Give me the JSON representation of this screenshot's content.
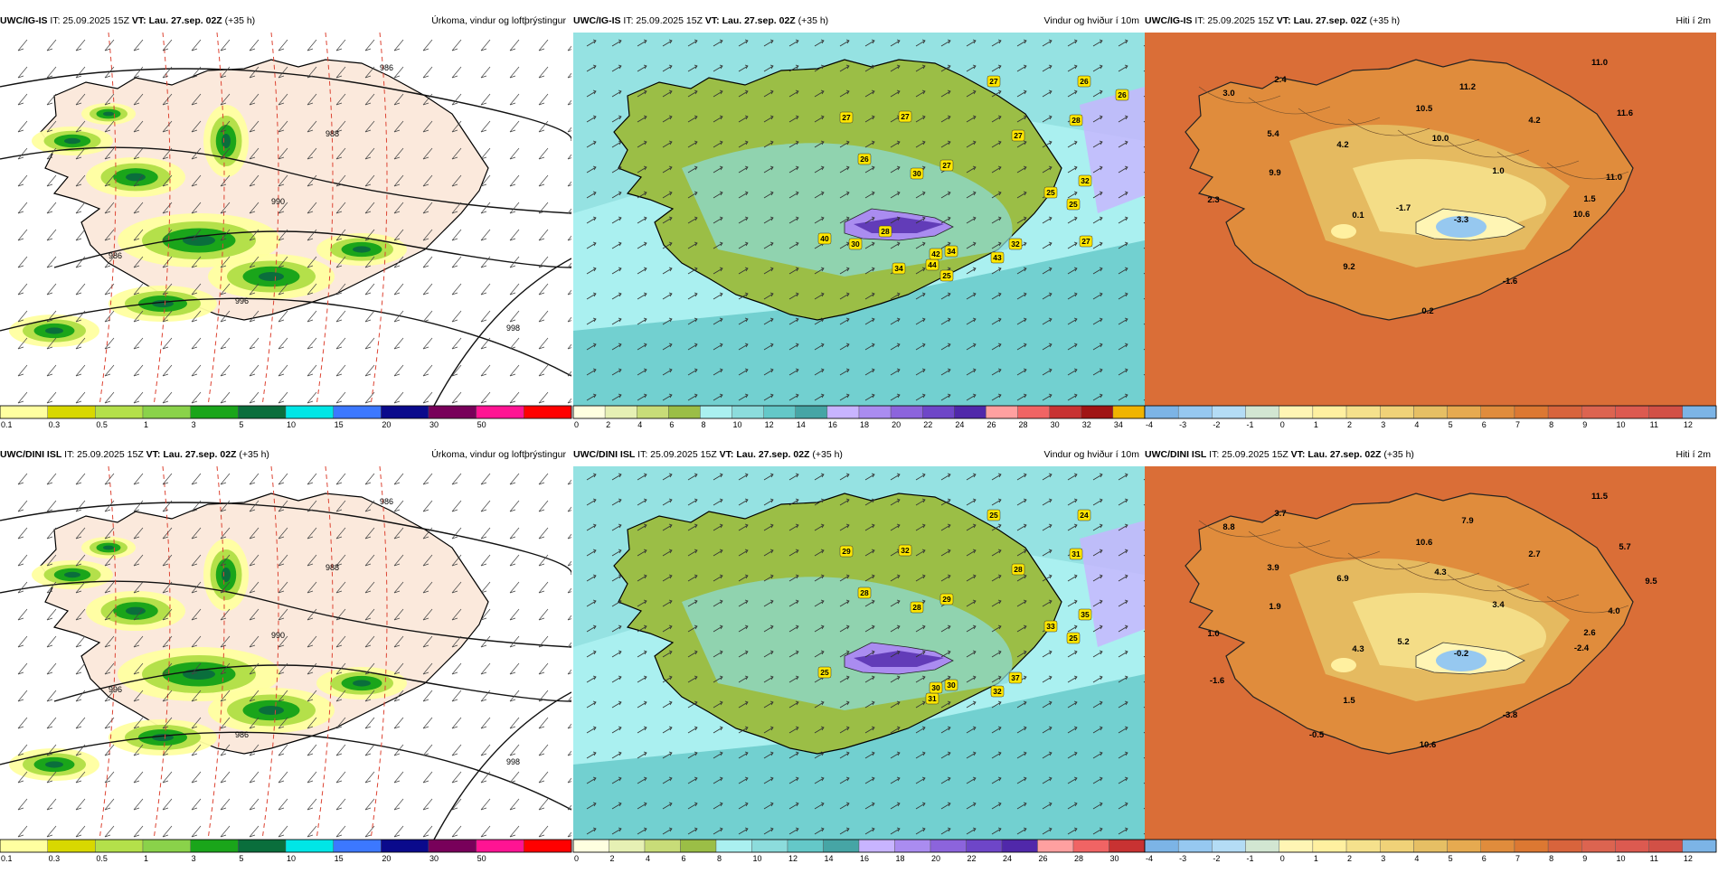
{
  "panels": [
    {
      "id": "p1",
      "model": "UWC/IG-IS",
      "field": "Úrkoma, vindur og loftþrýstingur",
      "kind": "precip",
      "ticks": [
        "0.1",
        "0.3",
        "0.5",
        "1",
        "3",
        "5",
        "10",
        "15",
        "20",
        "30",
        "50"
      ],
      "isobars": [
        "986",
        "988",
        "990",
        "996",
        "998",
        "986"
      ]
    },
    {
      "id": "p2",
      "model": "UWC/IG-IS",
      "field": "Vindur og hviður í 10m",
      "kind": "wind",
      "ticks": [
        "0",
        "2",
        "4",
        "6",
        "8",
        "10",
        "12",
        "14",
        "16",
        "18",
        "20",
        "22",
        "24",
        "26",
        "28",
        "30",
        "32",
        "34"
      ],
      "gusts": [
        "27",
        "26",
        "27",
        "27",
        "26",
        "30",
        "27",
        "27",
        "28",
        "40",
        "34",
        "44",
        "42",
        "43",
        "32",
        "32",
        "25",
        "25",
        "27",
        "26",
        "34",
        "25",
        "28",
        "30"
      ]
    },
    {
      "id": "p3",
      "model": "UWC/IG-IS",
      "field": "Hiti í 2m",
      "kind": "temp",
      "ticks": [
        "-4",
        "-3",
        "-2",
        "-1",
        "0",
        "1",
        "2",
        "3",
        "4",
        "5",
        "6",
        "7",
        "8",
        "9",
        "10",
        "11",
        "12"
      ],
      "temps": [
        "2.4",
        "3.0",
        "10.5",
        "11.2",
        "11.0",
        "4.2",
        "11.6",
        "5.4",
        "4.2",
        "10.0",
        "9.9",
        "1.0",
        "11.0",
        "2.3",
        "0.1",
        "-1.7",
        "1.5",
        "-3.3",
        "10.6",
        "9.2",
        "-1.6",
        "0.2"
      ]
    },
    {
      "id": "p4",
      "model": "UWC/DINI ISL",
      "field": "Úrkoma, vindur og loftþrýstingur",
      "kind": "precip",
      "ticks": [
        "0.1",
        "0.3",
        "0.5",
        "1",
        "3",
        "5",
        "10",
        "15",
        "20",
        "30",
        "50"
      ],
      "isobars": [
        "986",
        "988",
        "990",
        "986",
        "998",
        "996"
      ]
    },
    {
      "id": "p5",
      "model": "UWC/DINI ISL",
      "field": "Vindur og hviður í 10m",
      "kind": "wind",
      "ticks": [
        "0",
        "2",
        "4",
        "6",
        "8",
        "10",
        "12",
        "14",
        "16",
        "18",
        "20",
        "22",
        "24",
        "26",
        "28",
        "30"
      ],
      "gusts": [
        "25",
        "24",
        "29",
        "32",
        "28",
        "28",
        "29",
        "28",
        "31",
        "25",
        "30",
        "31",
        "30",
        "32",
        "37",
        "35",
        "33",
        "25"
      ]
    },
    {
      "id": "p6",
      "model": "UWC/DINI ISL",
      "field": "Hiti í 2m",
      "kind": "temp",
      "ticks": [
        "-4",
        "-3",
        "-2",
        "-1",
        "0",
        "1",
        "2",
        "3",
        "4",
        "5",
        "6",
        "7",
        "8",
        "9",
        "10",
        "11",
        "12"
      ],
      "temps": [
        "3.7",
        "8.8",
        "10.6",
        "7.9",
        "11.5",
        "2.7",
        "5.7",
        "3.9",
        "6.9",
        "4.3",
        "1.9",
        "3.4",
        "4.0",
        "1.0",
        "4.3",
        "5.2",
        "2.6",
        "-0.2",
        "-2.4",
        "1.5",
        "-3.8",
        "10.6",
        "9.5",
        "-1.6",
        "-0.5"
      ]
    }
  ],
  "common": {
    "it_label": "IT:",
    "it_value": "25.09.2025 15Z",
    "vt_label": "VT:",
    "vt_value": "Lau. 27.sep. 02Z",
    "lead": "(+35 h)"
  },
  "colors": {
    "precip": [
      "#ffffa0",
      "#d8d800",
      "#b4e04a",
      "#8ad24a",
      "#1aa51a",
      "#0a6e3c",
      "#00e6e6",
      "#3c78ff",
      "#0a0a8c",
      "#78005a",
      "#ff1493",
      "#ff0000"
    ],
    "wind": [
      "#ffffe0",
      "#e6f0b4",
      "#c8dc78",
      "#9bbe46",
      "#aaf0f0",
      "#8cdcdc",
      "#64c8c8",
      "#46a5a5",
      "#c8b4ff",
      "#aa8cf0",
      "#8c64dc",
      "#6e46c8",
      "#5028aa",
      "#ffa0a0",
      "#f06464",
      "#c83232",
      "#a01414",
      "#f0b400"
    ],
    "temp": [
      "#7cb4e6",
      "#96c8f0",
      "#b4dcf5",
      "#d2e6d2",
      "#fff5b4",
      "#fff0a0",
      "#f5e18c",
      "#f0d278",
      "#e6bf64",
      "#e6aa50",
      "#e08c3c",
      "#dc7832",
      "#d8643c",
      "#dc6450",
      "#dc5a50",
      "#d25046"
    ]
  }
}
